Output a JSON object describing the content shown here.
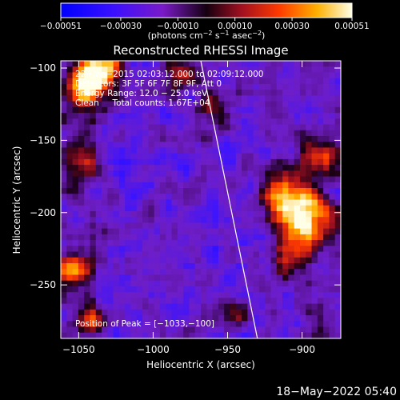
{
  "chart_data": {
    "type": "heatmap",
    "title": "Reconstructed RHESSI Image",
    "xlabel": "Heliocentric X (arcsec)",
    "ylabel": "Heliocentric Y (arcsec)",
    "xlim": [
      -1062,
      -874
    ],
    "ylim": [
      -287,
      -95
    ],
    "x_ticks": [
      -1050,
      -1000,
      -950,
      -900
    ],
    "y_ticks": [
      -250,
      -200,
      -150,
      -100
    ],
    "x_tick_labels": [
      "−1050",
      "−1000",
      "−950",
      "−900"
    ],
    "y_tick_labels": [
      "−250",
      "−200",
      "−150",
      "−100"
    ],
    "colorbar": {
      "range": [
        -0.00051,
        0.00051
      ],
      "ticks": [
        -0.00051,
        -0.0003,
        -0.0001,
        0.0001,
        0.0003,
        0.00051
      ],
      "tick_labels": [
        "−0.00051",
        "−0.00030",
        "−0.00010",
        "0.00010",
        "0.00030",
        "0.00051"
      ],
      "units_prefix": "(photons cm",
      "units_exp1": "−2",
      "units_mid1": " s",
      "units_exp2": "−1",
      "units_mid2": " asec",
      "units_exp3": "−2",
      "units_suffix": ")"
    },
    "annotations": [
      "22−Jan−2015 02:03:12.000 to 02:09:12.000",
      "Detectors: 3F 5F 6F 7F 8F 9F, Att 0",
      "Energy Range: 12.0 − 25.0 keV",
      "Clean     Total counts: 1.67E+04"
    ],
    "peak_label": "Position of Peak = [−1033,−100]",
    "peak": [
      -1033,
      -100
    ],
    "limb_line": [
      [
        -968,
        -95
      ],
      [
        -930,
        -287
      ]
    ],
    "hot_spots": [
      {
        "x": -1035,
        "y": -101,
        "amp": 1.0,
        "sigma": 9
      },
      {
        "x": -1045,
        "y": -115,
        "amp": 0.7,
        "sigma": 10
      },
      {
        "x": -898,
        "y": -205,
        "amp": 1.0,
        "sigma": 12
      },
      {
        "x": -912,
        "y": -188,
        "amp": 0.7,
        "sigma": 12
      },
      {
        "x": -885,
        "y": -160,
        "amp": 0.55,
        "sigma": 10
      },
      {
        "x": -908,
        "y": -230,
        "amp": 0.55,
        "sigma": 9
      },
      {
        "x": -1055,
        "y": -240,
        "amp": 0.7,
        "sigma": 8
      },
      {
        "x": -1040,
        "y": -275,
        "amp": 0.55,
        "sigma": 7
      },
      {
        "x": -985,
        "y": -105,
        "amp": 0.5,
        "sigma": 8
      },
      {
        "x": -960,
        "y": -125,
        "amp": 0.45,
        "sigma": 9
      },
      {
        "x": -1050,
        "y": -165,
        "amp": 0.45,
        "sigma": 8
      },
      {
        "x": -950,
        "y": -270,
        "amp": 0.4,
        "sigma": 8
      }
    ],
    "grid": false
  },
  "footer": {
    "datetime": "18−May−2022 05:40"
  }
}
